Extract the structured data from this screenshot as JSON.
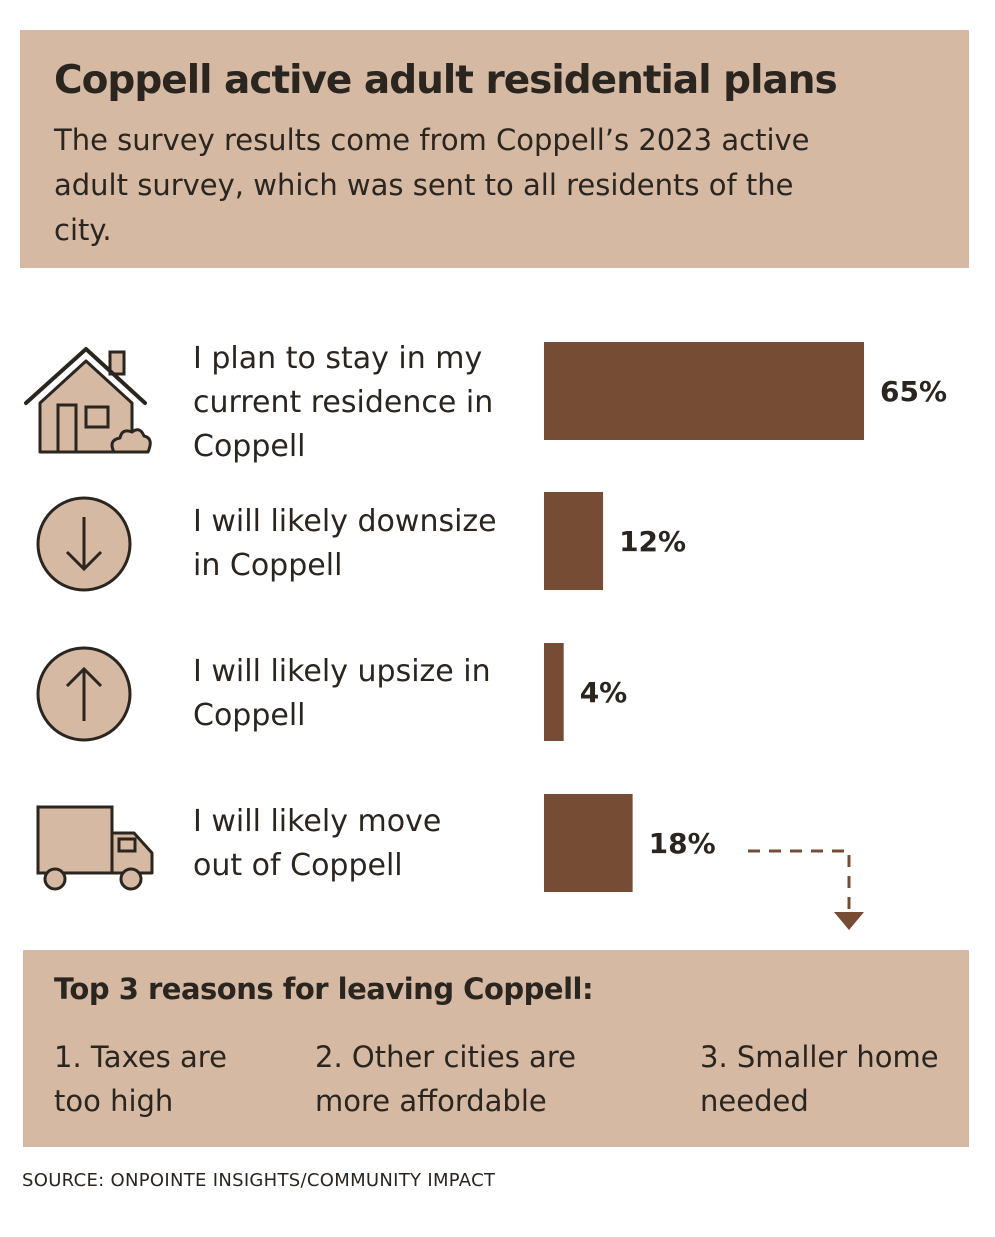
{
  "header": {
    "title": "Coppell active adult residential plans",
    "subtitle": "The survey results come from Coppell’s 2023 active adult survey, which was sent to all residents of the city."
  },
  "chart_data": {
    "type": "bar",
    "orientation": "horizontal",
    "categories": [
      "I plan to stay in my current residence in Coppell",
      "I will likely downsize in Coppell",
      "I will likely upsize in Coppell",
      "I will likely move out of Coppell"
    ],
    "values": [
      65,
      12,
      4,
      18
    ],
    "value_labels": [
      "65%",
      "12%",
      "4%",
      "18%"
    ],
    "unit": "%",
    "xlim": [
      0,
      65
    ],
    "bar_color": "#774c35",
    "icons": [
      "house-icon",
      "down-arrow-icon",
      "up-arrow-icon",
      "truck-icon"
    ]
  },
  "reasons": {
    "title": "Top 3 reasons for leaving Coppell:",
    "items": [
      "1. Taxes are too high",
      "2. Other cities are more affordable",
      "3. Smaller home needed"
    ]
  },
  "source": "SOURCE: ONPOINTE INSIGHTS/COMMUNITY IMPACT",
  "colors": {
    "panel": "#d5b9a2",
    "bar": "#774c35",
    "icon_fill": "#d5b9a2",
    "ink": "#2b2520"
  }
}
